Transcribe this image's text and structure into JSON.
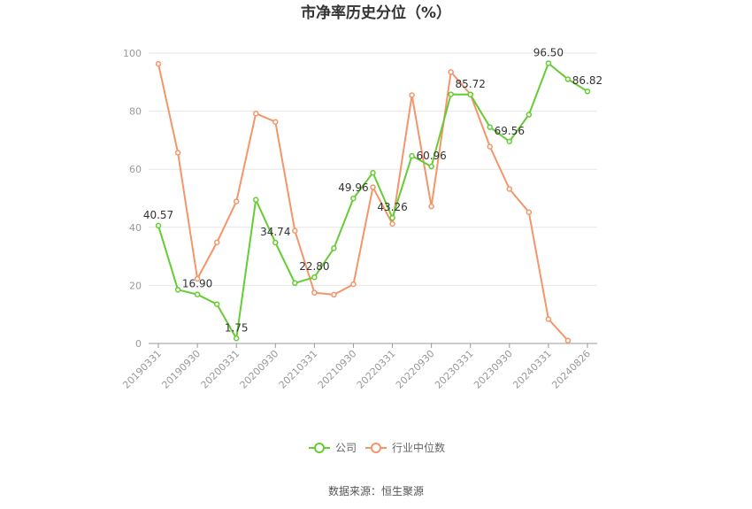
{
  "chart_data": {
    "type": "line",
    "title": "市净率历史分位（%）",
    "ylim": [
      0,
      100
    ],
    "yticks": [
      0,
      20,
      40,
      60,
      80,
      100
    ],
    "x_tick_labels": [
      "20190331",
      "20190930",
      "20200331",
      "20200930",
      "20210331",
      "20210930",
      "20220331",
      "20220930",
      "20230331",
      "20230930",
      "20240331",
      "20240826"
    ],
    "x": [
      0,
      1,
      2,
      3,
      4,
      5,
      6,
      7,
      8,
      9,
      10,
      11,
      12,
      13,
      14,
      15,
      16,
      17,
      18,
      19,
      20,
      21,
      22
    ],
    "x_tick_positions": [
      0,
      2,
      4,
      6,
      8,
      10,
      12,
      14,
      16,
      18,
      20,
      22
    ],
    "series": [
      {
        "name": "公司",
        "color": "#66cc33",
        "values": [
          40.57,
          18.5,
          16.9,
          13.5,
          1.75,
          49.5,
          34.74,
          20.8,
          22.8,
          32.8,
          49.96,
          58.8,
          43.26,
          64.6,
          60.96,
          85.8,
          85.72,
          74.5,
          69.56,
          78.8,
          96.5,
          91.0,
          86.82
        ]
      },
      {
        "name": "行业中位数",
        "color": "#f4956a",
        "values": [
          96.3,
          65.7,
          22.3,
          34.8,
          48.9,
          79.2,
          76.3,
          38.8,
          17.5,
          16.8,
          20.4,
          53.8,
          41.2,
          85.5,
          47.2,
          93.5,
          85.8,
          67.8,
          53.2,
          45.2,
          8.4,
          1.0,
          null
        ]
      }
    ],
    "data_labels": [
      {
        "series": 0,
        "index": 0,
        "text": "40.57"
      },
      {
        "series": 0,
        "index": 2,
        "text": "16.90"
      },
      {
        "series": 0,
        "index": 4,
        "text": "1.75"
      },
      {
        "series": 0,
        "index": 6,
        "text": "34.74"
      },
      {
        "series": 0,
        "index": 8,
        "text": "22.80"
      },
      {
        "series": 0,
        "index": 10,
        "text": "49.96"
      },
      {
        "series": 0,
        "index": 12,
        "text": "43.26"
      },
      {
        "series": 0,
        "index": 14,
        "text": "60.96"
      },
      {
        "series": 0,
        "index": 16,
        "text": "85.72"
      },
      {
        "series": 0,
        "index": 18,
        "text": "69.56"
      },
      {
        "series": 0,
        "index": 20,
        "text": "96.50"
      },
      {
        "series": 0,
        "index": 22,
        "text": "86.82"
      }
    ],
    "legend_position": "bottom-center",
    "grid": true
  },
  "source_text": "数据来源：恒生聚源"
}
